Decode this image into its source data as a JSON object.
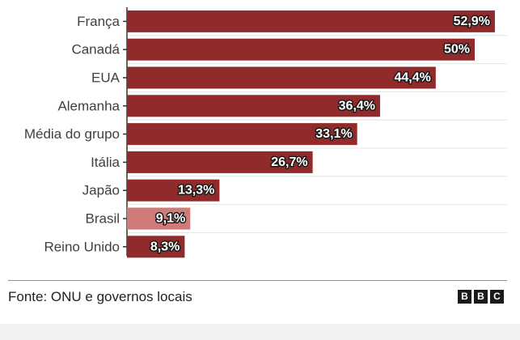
{
  "chart_data": {
    "type": "bar",
    "orientation": "horizontal",
    "categories": [
      "França",
      "Canadá",
      "EUA",
      "Alemanha",
      "Média do grupo",
      "Itália",
      "Japão",
      "Brasil",
      "Reino Unido"
    ],
    "values": [
      52.9,
      50,
      44.4,
      36.4,
      33.1,
      26.7,
      13.3,
      9.1,
      8.3
    ],
    "value_labels": [
      "52,9%",
      "50%",
      "44,4%",
      "36,4%",
      "33,1%",
      "26,7%",
      "13,3%",
      "9,1%",
      "8,3%"
    ],
    "unit": "%",
    "xlim": [
      0,
      55
    ],
    "grid": true,
    "colors": {
      "bar": "#912b2b",
      "highlight": "#d07a7a",
      "highlight_category": "Brasil",
      "label_text": "#ffffff",
      "label_outline": "#1a1a1a"
    }
  },
  "footer": {
    "source": "Fonte: ONU e governos locais",
    "logo_letters": [
      "B",
      "B",
      "C"
    ]
  }
}
